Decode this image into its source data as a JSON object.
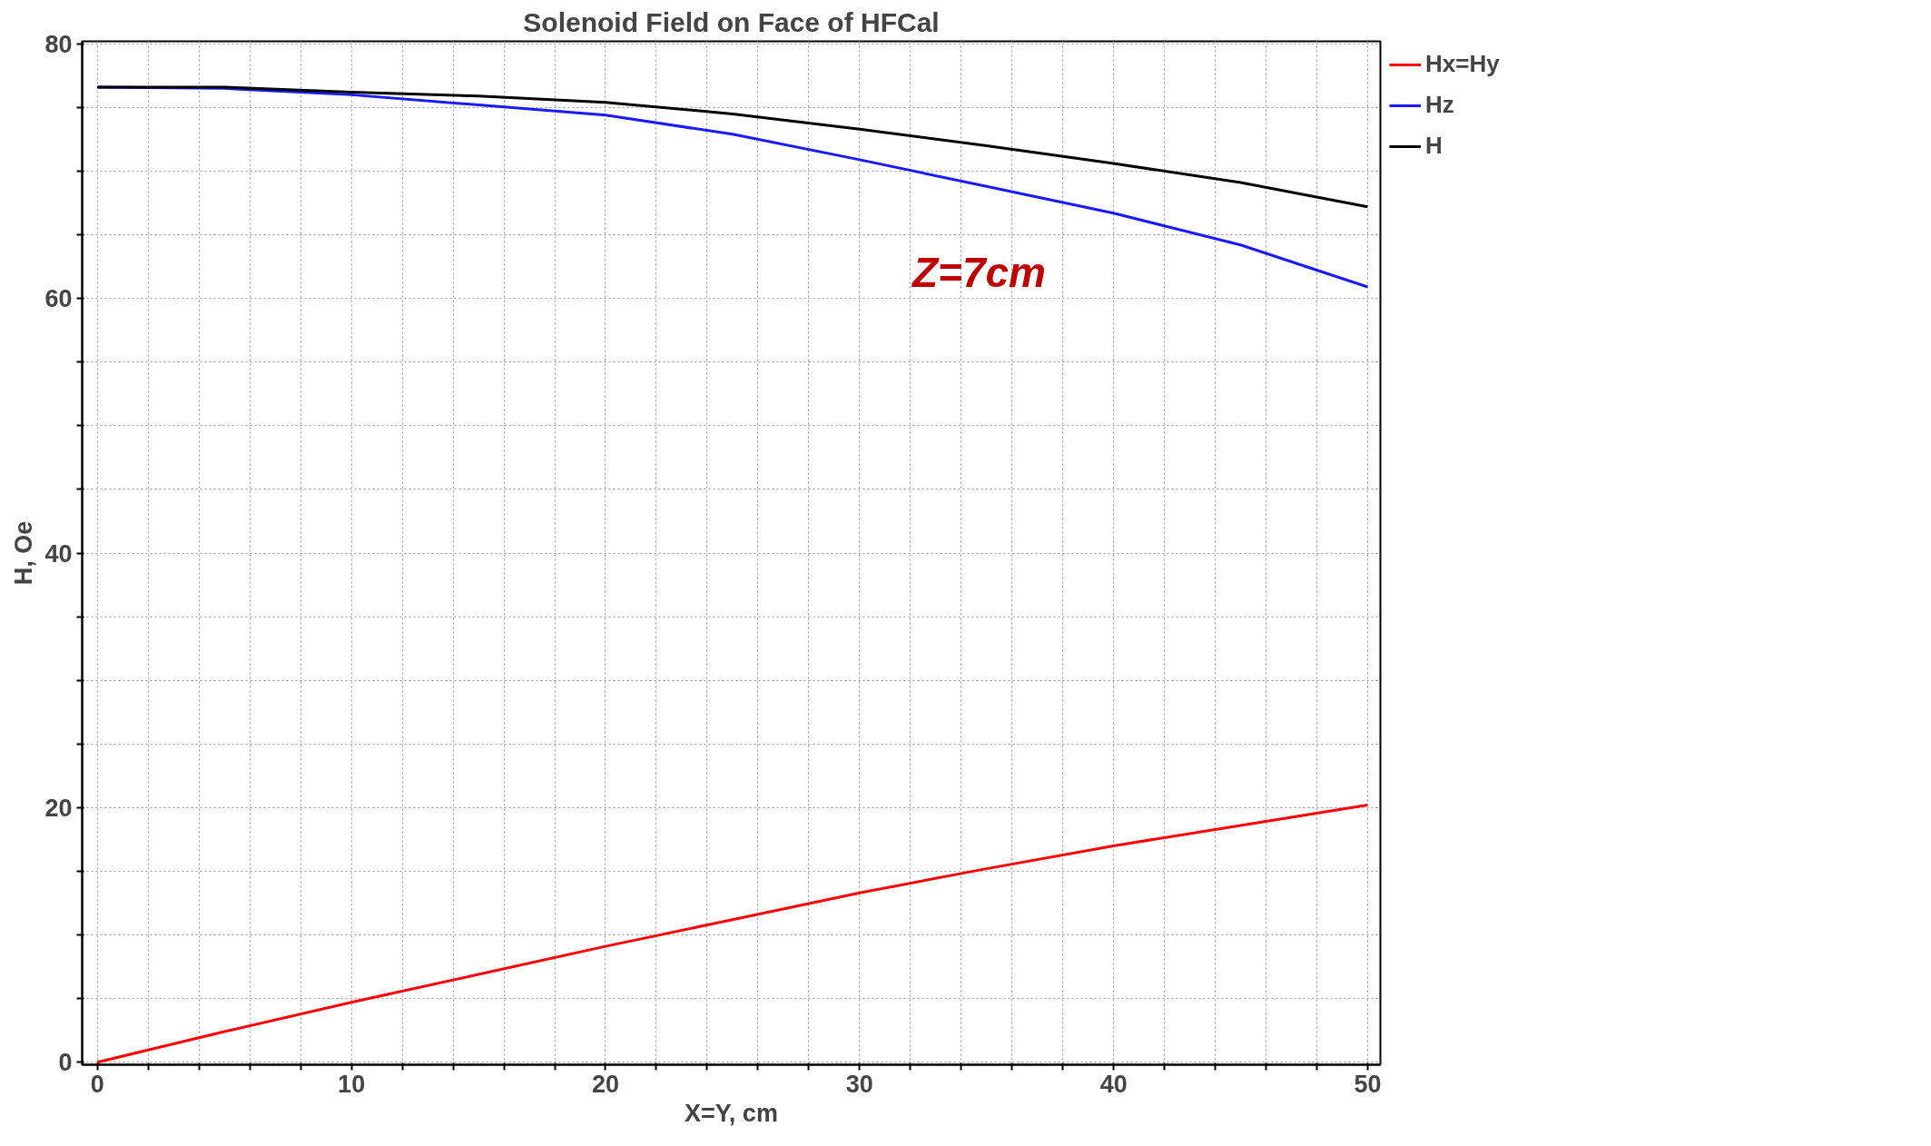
{
  "chart_data": {
    "type": "line",
    "title": "Solenoid Field on Face of HFCal",
    "xlabel": "X=Y, cm",
    "ylabel": "H, Oe",
    "x": [
      0,
      5,
      10,
      15,
      20,
      25,
      30,
      35,
      40,
      45,
      50
    ],
    "series": [
      {
        "name": "Hx=Hy",
        "color": "#ff0000",
        "values": [
          0,
          2.4,
          4.7,
          6.9,
          9.1,
          11.2,
          13.3,
          15.2,
          17.0,
          18.6,
          20.2
        ]
      },
      {
        "name": "Hz",
        "color": "#1a1aff",
        "values": [
          76.6,
          76.5,
          76.0,
          75.2,
          74.4,
          72.9,
          70.9,
          68.8,
          66.7,
          64.2,
          60.9
        ]
      },
      {
        "name": "H",
        "color": "#000000",
        "values": [
          76.6,
          76.6,
          76.2,
          75.9,
          75.4,
          74.5,
          73.3,
          72.0,
          70.6,
          69.1,
          67.2
        ]
      }
    ],
    "xlim": [
      -0.6,
      50.5
    ],
    "ylim": [
      -0.2,
      80.2
    ],
    "xticks": [
      0,
      {
        "value": 2,
        "label": null
      },
      {
        "value": 4,
        "label": null
      },
      {
        "value": 6,
        "label": null
      },
      {
        "value": 8,
        "label": null
      },
      10,
      {
        "value": 12,
        "label": null
      },
      {
        "value": 14,
        "label": null
      },
      {
        "value": 16,
        "label": null
      },
      {
        "value": 18,
        "label": null
      },
      20,
      {
        "value": 22,
        "label": null
      },
      {
        "value": 24,
        "label": null
      },
      {
        "value": 26,
        "label": null
      },
      {
        "value": 28,
        "label": null
      },
      30,
      {
        "value": 32,
        "label": null
      },
      {
        "value": 34,
        "label": null
      },
      {
        "value": 36,
        "label": null
      },
      {
        "value": 38,
        "label": null
      },
      40,
      {
        "value": 42,
        "label": null
      },
      {
        "value": 44,
        "label": null
      },
      {
        "value": 46,
        "label": null
      },
      {
        "value": 48,
        "label": null
      },
      50
    ],
    "yticks": [
      0,
      {
        "value": 5,
        "label": null
      },
      {
        "value": 10,
        "label": null
      },
      {
        "value": 15,
        "label": null
      },
      20,
      {
        "value": 25,
        "label": null
      },
      {
        "value": 30,
        "label": null
      },
      {
        "value": 35,
        "label": null
      },
      40,
      {
        "value": 45,
        "label": null
      },
      {
        "value": 50,
        "label": null
      },
      {
        "value": 55,
        "label": null
      },
      60,
      {
        "value": 65,
        "label": null
      },
      {
        "value": 70,
        "label": null
      },
      {
        "value": 75,
        "label": null
      },
      80
    ],
    "annotations": [
      "Z=7cm"
    ],
    "grid": true,
    "legend": "top right",
    "marker": "none",
    "line_style": "solid"
  }
}
